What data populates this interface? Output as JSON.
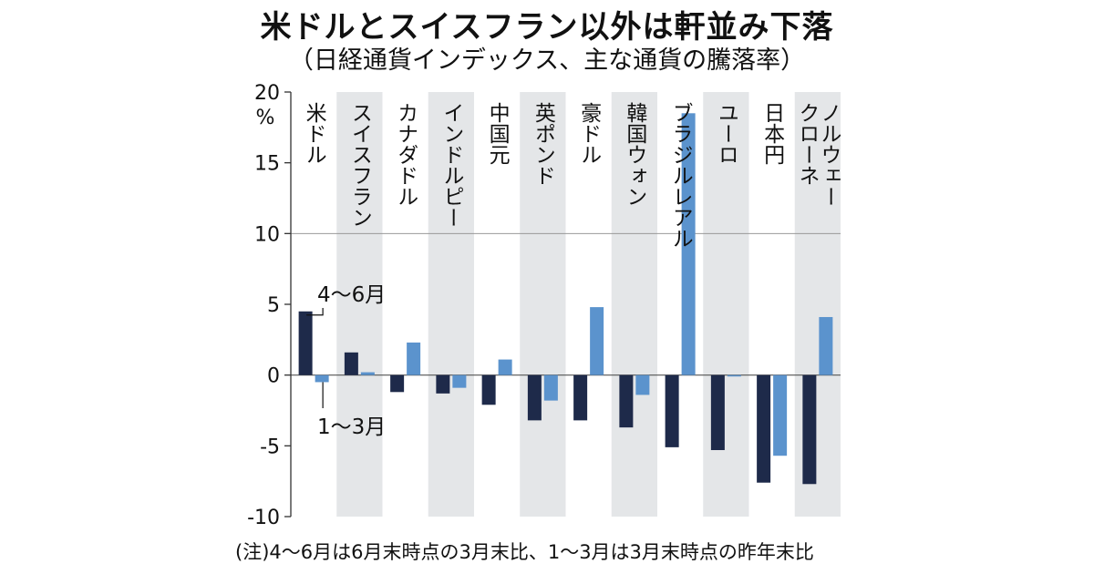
{
  "chart_data": {
    "type": "bar",
    "title": "米ドルとスイスフラン以外は軒並み下落",
    "subtitle": "（日経通貨インデックス、主な通貨の騰落率）",
    "y_unit": "%",
    "ylim": [
      -10,
      20
    ],
    "yticks": [
      "20",
      "15",
      "10",
      "5",
      "0",
      "-5",
      "-10"
    ],
    "grid": "horizontal lines at 10, 0",
    "categories": [
      "米ドル",
      "スイスフラン",
      "カナダドル",
      "インドルピー",
      "中国元",
      "英ポンド",
      "豪ドル",
      "韓国ウォン",
      "ブラジルレアル",
      "ユーロ",
      "日本円",
      "ノルウェー\nクローネ"
    ],
    "series": [
      {
        "name": "4〜6月",
        "color": "#1e2a4a",
        "values": [
          4.5,
          1.6,
          -1.2,
          -1.3,
          -2.1,
          -3.2,
          -3.2,
          -3.7,
          -5.1,
          -5.3,
          -7.6,
          -7.7
        ]
      },
      {
        "name": "1〜3月",
        "color": "#5b93cd",
        "values": [
          -0.5,
          0.2,
          2.3,
          -0.9,
          1.1,
          -1.8,
          4.8,
          -1.4,
          18.5,
          -0.1,
          -5.7,
          4.1
        ]
      }
    ],
    "annotations": [
      "4〜6月",
      "1〜3月"
    ]
  },
  "note": "(注)4〜6月は6月末時点の3月末比、1〜3月は3月末時点の昨年末比",
  "colors": {
    "band": "#e4e6e8",
    "axis": "#333333",
    "grid": "#999999"
  }
}
